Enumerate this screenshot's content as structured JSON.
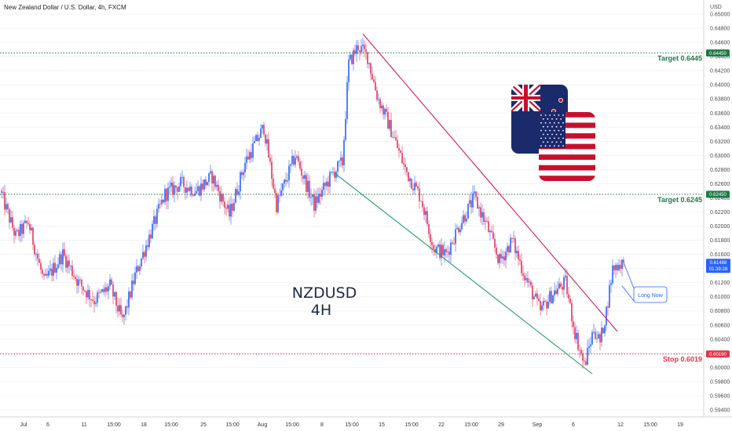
{
  "chart_data": {
    "type": "candlestick",
    "title": "New Zealand Dollar / U.S. Dollar, 4h, FXCM",
    "currency_label": "USD",
    "symbol_label": "NZDUSD",
    "interval_label": "4H",
    "ylim": [
      0.593,
      0.652
    ],
    "y_ticks": [
      "0.65000",
      "0.64800",
      "0.64600",
      "0.64400",
      "0.64200",
      "0.64000",
      "0.63800",
      "0.63600",
      "0.63400",
      "0.63200",
      "0.63000",
      "0.62800",
      "0.62600",
      "0.62400",
      "0.62200",
      "0.62000",
      "0.61800",
      "0.61600",
      "0.61400",
      "0.61200",
      "0.61000",
      "0.60800",
      "0.60600",
      "0.60400",
      "0.60200",
      "0.60000",
      "0.59800",
      "0.59600",
      "0.59400"
    ],
    "x_ticks": [
      "Jul",
      "6",
      "11",
      "15:00",
      "18",
      "15:00",
      "25",
      "15:00",
      "Aug",
      "15:00",
      "8",
      "15:00",
      "15",
      "15:00",
      "22",
      "15:00",
      "29",
      "Sep",
      "6",
      "12",
      "15:00",
      "19"
    ],
    "levels": [
      {
        "label": "Target 0.6445",
        "value": 0.6445,
        "tag": "0.64450",
        "color": "#1e7a46",
        "type": "target"
      },
      {
        "label": "Target 0.6245",
        "value": 0.6245,
        "tag": "0.62450",
        "color": "#1e7a46",
        "type": "target"
      },
      {
        "label": "Stop 0.6019",
        "value": 0.6019,
        "tag": "0.60190",
        "color": "#e0354a",
        "type": "stop"
      }
    ],
    "current_price": {
      "value": 0.61488,
      "tag": "0.61488",
      "countdown": "01:39:28",
      "color": "#2962ff"
    },
    "annotation": {
      "label": "Long Now",
      "color": "#2962ff"
    },
    "channel": {
      "upper_line": {
        "from": {
          "bar": 230,
          "price": 0.6472
        },
        "to": {
          "bar": 392,
          "price": 0.6051
        },
        "color": "#d81e52"
      },
      "lower_line": {
        "from": {
          "bar": 212,
          "price": 0.6275
        },
        "to": {
          "bar": 376,
          "price": 0.5991
        },
        "color": "#1f9e63"
      }
    },
    "candles": {
      "count": 397,
      "open": 0.625,
      "anchors": [
        [
          0,
          0.625
        ],
        [
          10,
          0.6185
        ],
        [
          18,
          0.6205
        ],
        [
          28,
          0.612
        ],
        [
          40,
          0.616
        ],
        [
          50,
          0.612
        ],
        [
          60,
          0.6095
        ],
        [
          70,
          0.6115
        ],
        [
          78,
          0.6065
        ],
        [
          86,
          0.613
        ],
        [
          95,
          0.6185
        ],
        [
          105,
          0.6245
        ],
        [
          115,
          0.626
        ],
        [
          125,
          0.625
        ],
        [
          135,
          0.627
        ],
        [
          146,
          0.6215
        ],
        [
          156,
          0.629
        ],
        [
          168,
          0.634
        ],
        [
          176,
          0.623
        ],
        [
          188,
          0.63
        ],
        [
          200,
          0.623
        ],
        [
          212,
          0.6275
        ],
        [
          218,
          0.629
        ],
        [
          222,
          0.643
        ],
        [
          228,
          0.6455
        ],
        [
          234,
          0.644
        ],
        [
          240,
          0.6385
        ],
        [
          250,
          0.633
        ],
        [
          258,
          0.628
        ],
        [
          268,
          0.624
        ],
        [
          276,
          0.617
        ],
        [
          284,
          0.616
        ],
        [
          292,
          0.62
        ],
        [
          302,
          0.624
        ],
        [
          310,
          0.62
        ],
        [
          318,
          0.615
        ],
        [
          326,
          0.618
        ],
        [
          334,
          0.613
        ],
        [
          344,
          0.608
        ],
        [
          352,
          0.6105
        ],
        [
          360,
          0.612
        ],
        [
          366,
          0.605
        ],
        [
          372,
          0.6002
        ],
        [
          378,
          0.6055
        ],
        [
          382,
          0.6035
        ],
        [
          386,
          0.608
        ],
        [
          390,
          0.614
        ],
        [
          396,
          0.6149
        ]
      ]
    }
  }
}
